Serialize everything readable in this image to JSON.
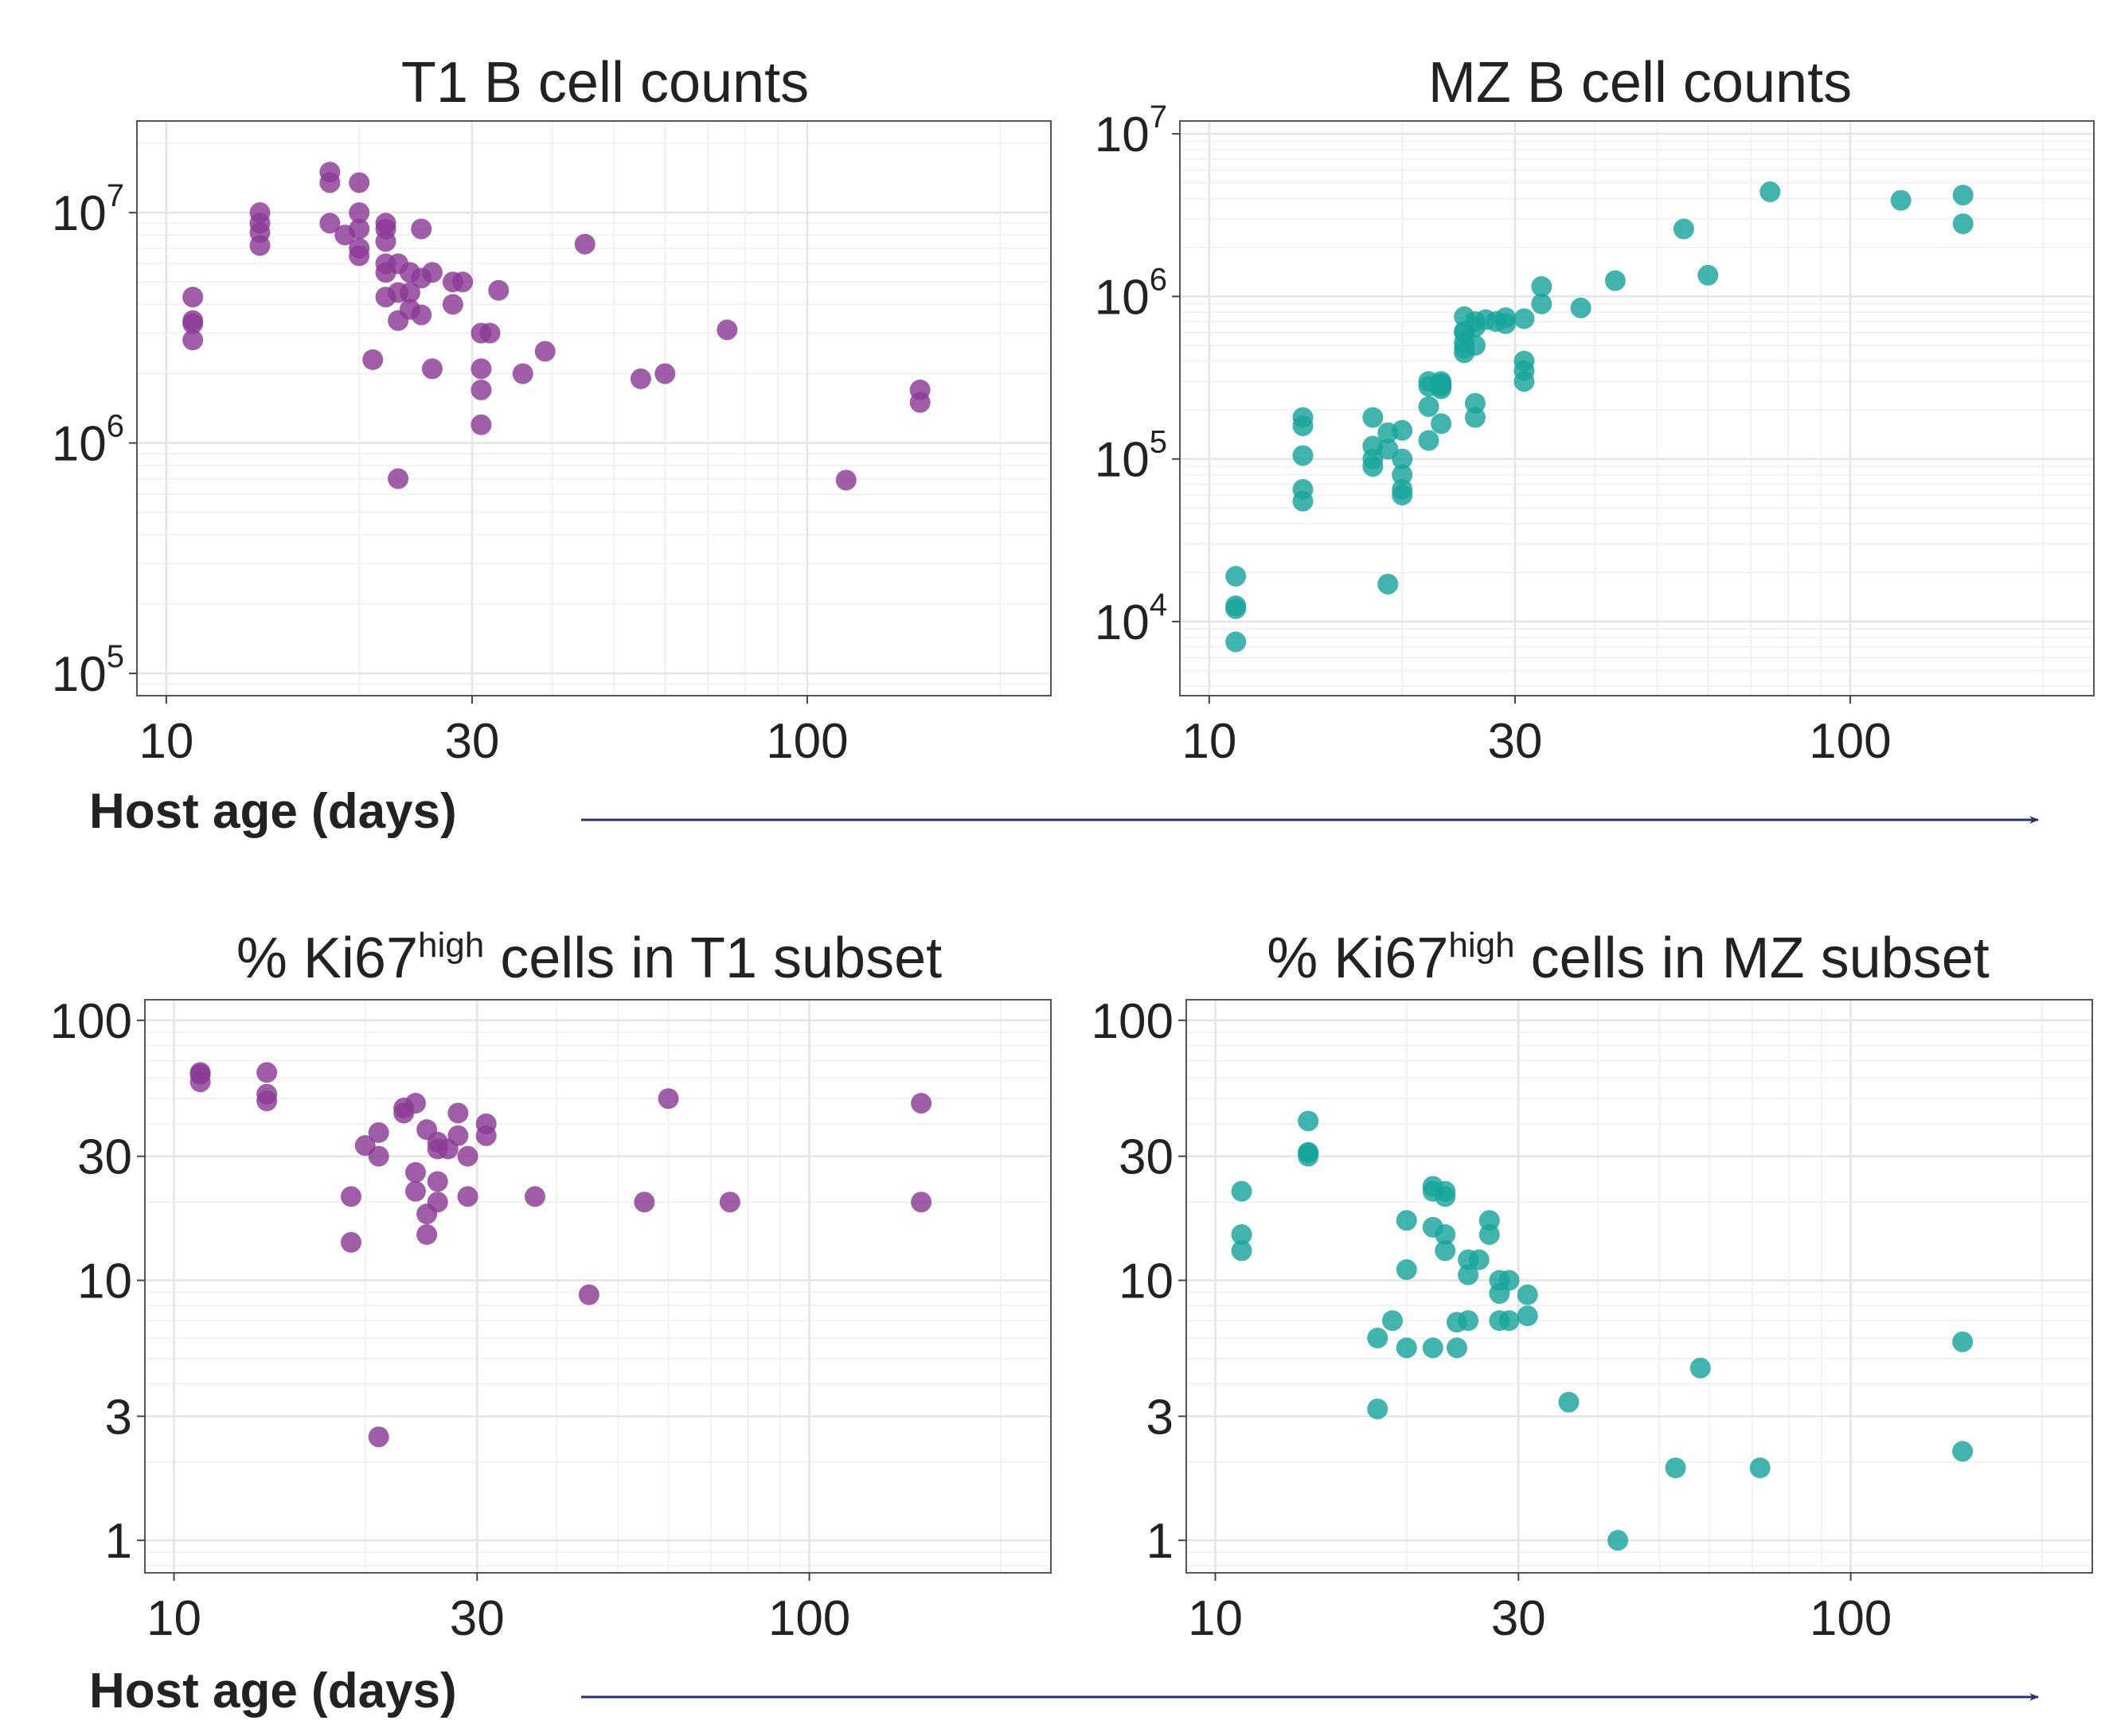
{
  "colors": {
    "t1": "#8B3A96",
    "mz": "#17A59B",
    "arrow": "#27307A"
  },
  "x_axis_label": "Host age (days)",
  "chart_data": [
    {
      "type": "scatter",
      "title": "T1 B cell counts",
      "title_sup": "",
      "title_after": "",
      "xscale": "log",
      "yscale": "log",
      "xlim": [
        9,
        240
      ],
      "ylim": [
        80000,
        25000000
      ],
      "xticks": [
        10,
        30,
        100
      ],
      "xtick_labels": [
        "10",
        "30",
        "100"
      ],
      "yticks": [
        100000,
        1000000,
        10000000
      ],
      "ytick_labels": [
        {
          "base": "10",
          "exp": "5"
        },
        {
          "base": "10",
          "exp": "6"
        },
        {
          "base": "10",
          "exp": "7"
        }
      ],
      "grid": true,
      "color": "t1",
      "series": [
        {
          "x": [
            11,
            11,
            11,
            11,
            14,
            14,
            14,
            14,
            18,
            18,
            18,
            19,
            20,
            20,
            20,
            20,
            20,
            21,
            22,
            22,
            22,
            22,
            22,
            22,
            23,
            23,
            23,
            23,
            24,
            24,
            24,
            25,
            25,
            25,
            26,
            26,
            28,
            28,
            29,
            31,
            31,
            31,
            31,
            32,
            33,
            36,
            39,
            45,
            55,
            60,
            75,
            115,
            150,
            150
          ],
          "y": [
            4300000,
            3400000,
            3300000,
            2800000,
            10000000,
            9000000,
            8200000,
            7200000,
            15000000,
            13500000,
            9000000,
            8000000,
            13500000,
            10000000,
            8500000,
            7000000,
            6500000,
            2300000,
            9000000,
            6000000,
            5500000,
            4300000,
            8500000,
            7500000,
            6000000,
            4500000,
            3400000,
            700000,
            5500000,
            4500000,
            3800000,
            8500000,
            5200000,
            3600000,
            5500000,
            2100000,
            5000000,
            4000000,
            5000000,
            3000000,
            2100000,
            1700000,
            1200000,
            3000000,
            4600000,
            2000000,
            2500000,
            7300000,
            1900000,
            2000000,
            3100000,
            690000,
            1700000,
            1500000
          ]
        }
      ]
    },
    {
      "type": "scatter",
      "title": "MZ B cell counts",
      "title_sup": "",
      "title_after": "",
      "xscale": "log",
      "yscale": "log",
      "xlim": [
        9,
        240
      ],
      "ylim": [
        3500,
        12000000
      ],
      "xticks": [
        10,
        30,
        100
      ],
      "xtick_labels": [
        "10",
        "30",
        "100"
      ],
      "yticks": [
        10000,
        100000,
        1000000,
        10000000
      ],
      "ytick_labels": [
        {
          "base": "10",
          "exp": "4"
        },
        {
          "base": "10",
          "exp": "5"
        },
        {
          "base": "10",
          "exp": "6"
        },
        {
          "base": "10",
          "exp": "7"
        }
      ],
      "grid": true,
      "color": "mz",
      "series": [
        {
          "x": [
            11,
            11,
            11,
            11,
            14,
            14,
            14,
            14,
            14,
            18,
            18,
            18,
            18,
            19,
            19,
            19,
            20,
            20,
            20,
            20,
            20,
            22,
            22,
            22,
            22,
            23,
            23,
            23,
            23,
            23,
            23,
            25,
            25,
            25,
            25,
            25,
            25,
            26,
            26,
            26,
            26,
            26,
            27,
            28,
            29,
            29,
            31,
            31,
            31,
            31,
            33,
            33,
            38,
            43,
            55,
            60,
            75,
            120,
            150,
            150
          ],
          "y": [
            19000,
            12500,
            12000,
            7500,
            180000,
            160000,
            105000,
            65000,
            55000,
            180000,
            120000,
            100000,
            90000,
            145000,
            17000,
            115000,
            150000,
            100000,
            80000,
            60000,
            65000,
            300000,
            280000,
            210000,
            130000,
            300000,
            290000,
            270000,
            165000,
            280000,
            290000,
            750000,
            600000,
            520000,
            450000,
            610000,
            480000,
            700000,
            650000,
            220000,
            180000,
            500000,
            720000,
            700000,
            740000,
            680000,
            400000,
            350000,
            300000,
            730000,
            1150000,
            900000,
            850000,
            1250000,
            2600000,
            1350000,
            4400000,
            3900000,
            4200000,
            2800000
          ]
        }
      ]
    },
    {
      "type": "scatter",
      "title": "% Ki67",
      "title_sup": "high",
      "title_after": " cells in T1 subset",
      "xscale": "log",
      "yscale": "log",
      "xlim": [
        9,
        240
      ],
      "ylim": [
        0.75,
        120
      ],
      "xticks": [
        10,
        30,
        100
      ],
      "xtick_labels": [
        "10",
        "30",
        "100"
      ],
      "yticks": [
        1,
        3,
        10,
        30,
        100
      ],
      "ytick_labels": [
        "1",
        "3",
        "10",
        "30",
        "100"
      ],
      "grid": true,
      "color": "t1",
      "series": [
        {
          "x": [
            11,
            11,
            11,
            14,
            14,
            14,
            19,
            19,
            20,
            21,
            21,
            21,
            23,
            23,
            24,
            24,
            24,
            25,
            25,
            25,
            26,
            26,
            26,
            26,
            27,
            28,
            28,
            29,
            29,
            31,
            31,
            37,
            45,
            55,
            60,
            75,
            150,
            150
          ],
          "y": [
            63,
            62,
            58,
            63,
            52,
            49,
            21,
            14,
            33,
            37,
            30,
            2.5,
            46,
            44,
            26,
            22,
            48,
            38,
            18,
            15,
            24,
            20,
            34,
            32,
            32,
            44,
            36,
            30,
            21,
            40,
            36,
            21,
            8.8,
            20,
            50,
            20,
            48,
            20
          ]
        }
      ]
    },
    {
      "type": "scatter",
      "title": "% Ki67",
      "title_sup": "high",
      "title_after": " cells in MZ subset",
      "xscale": "log",
      "yscale": "log",
      "xlim": [
        9,
        240
      ],
      "ylim": [
        0.75,
        120
      ],
      "xticks": [
        10,
        30,
        100
      ],
      "xtick_labels": [
        "10",
        "30",
        "100"
      ],
      "yticks": [
        1,
        3,
        10,
        30,
        100
      ],
      "ytick_labels": [
        "1",
        "3",
        "10",
        "30",
        "100"
      ],
      "grid": true,
      "color": "mz",
      "series": [
        {
          "x": [
            11,
            11,
            11,
            14,
            14,
            14,
            14,
            18,
            18,
            19,
            20,
            20,
            20,
            22,
            22,
            22,
            22,
            23,
            23,
            23,
            23,
            24,
            24,
            25,
            25,
            25,
            26,
            27,
            27,
            28,
            28,
            28,
            29,
            29,
            31,
            31,
            36,
            43,
            53,
            58,
            72,
            150,
            150
          ],
          "y": [
            22,
            15,
            13,
            41,
            31,
            30,
            31,
            6,
            3.2,
            7,
            17,
            11,
            5.5,
            23,
            22,
            16,
            5.5,
            21,
            22,
            15,
            13,
            6.9,
            5.5,
            12,
            10.5,
            7,
            12,
            17,
            15,
            8.9,
            7,
            10,
            7,
            10,
            8.8,
            7.3,
            3.4,
            1.0,
            1.9,
            4.6,
            1.9,
            5.8,
            2.2
          ]
        }
      ]
    }
  ]
}
